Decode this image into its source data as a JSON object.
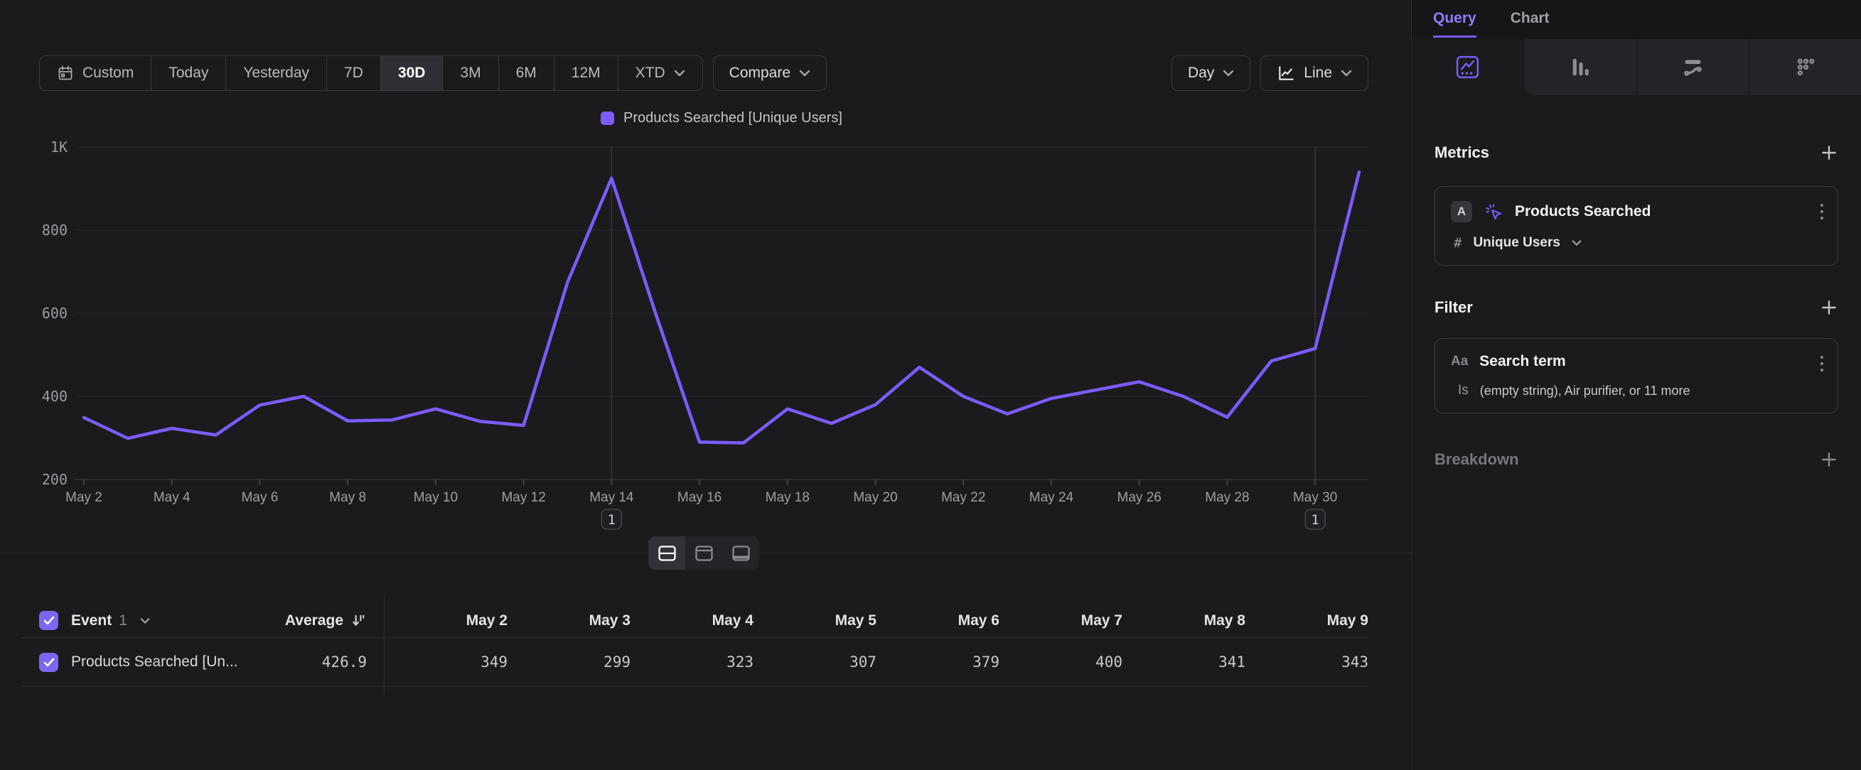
{
  "accent": "#7c5cfc",
  "toolbar": {
    "date_ranges": [
      "Custom",
      "Today",
      "Yesterday",
      "7D",
      "30D",
      "3M",
      "6M",
      "12M",
      "XTD"
    ],
    "active_range": "30D",
    "compare_label": "Compare",
    "granularity_label": "Day",
    "chart_type_label": "Line"
  },
  "chart_data": {
    "type": "line",
    "x": [
      "May 2",
      "May 3",
      "May 4",
      "May 5",
      "May 6",
      "May 7",
      "May 8",
      "May 9",
      "May 10",
      "May 11",
      "May 12",
      "May 13",
      "May 14",
      "May 15",
      "May 16",
      "May 17",
      "May 18",
      "May 19",
      "May 20",
      "May 21",
      "May 22",
      "May 23",
      "May 24",
      "May 25",
      "May 26",
      "May 27",
      "May 28",
      "May 29",
      "May 30",
      "May 31"
    ],
    "x_tick_every": 2,
    "series": [
      {
        "name": "Products Searched [Unique Users]",
        "color": "#7c5cfc",
        "values": [
          349,
          299,
          323,
          307,
          379,
          400,
          341,
          343,
          370,
          340,
          330,
          675,
          925,
          600,
          290,
          288,
          370,
          335,
          380,
          470,
          400,
          358,
          395,
          415,
          435,
          400,
          350,
          485,
          515,
          940
        ]
      }
    ],
    "ylim": [
      200,
      1000
    ],
    "y_ticks": [
      {
        "label": "200",
        "value": 200
      },
      {
        "label": "400",
        "value": 400
      },
      {
        "label": "600",
        "value": 600
      },
      {
        "label": "800",
        "value": 800
      },
      {
        "label": "1K",
        "value": 1000
      }
    ],
    "grid": true,
    "legend_position": "top",
    "annotations": [
      {
        "index": 12,
        "label": "1"
      },
      {
        "index": 28,
        "label": "1"
      }
    ]
  },
  "table": {
    "event_label": "Event",
    "event_count": "1",
    "average_label": "Average",
    "columns": [
      "May 2",
      "May 3",
      "May 4",
      "May 5",
      "May 6",
      "May 7",
      "May 8",
      "May 9"
    ],
    "row": {
      "name": "Products Searched [Un...",
      "average": "426.9",
      "values": [
        "349",
        "299",
        "323",
        "307",
        "379",
        "400",
        "341",
        "343"
      ]
    }
  },
  "sidebar": {
    "tabs": {
      "query": "Query",
      "chart": "Chart"
    },
    "chart_type_tabs": [
      "insights",
      "bar",
      "flows",
      "grid"
    ],
    "metrics": {
      "heading": "Metrics",
      "card": {
        "badge": "A",
        "name": "Products Searched",
        "agg_symbol": "#",
        "aggregation": "Unique Users"
      }
    },
    "filter": {
      "heading": "Filter",
      "card": {
        "type_icon": "Aa",
        "name": "Search term",
        "operator": "Is",
        "value": "(empty string), Air purifier, or 11 more"
      }
    },
    "breakdown": {
      "heading": "Breakdown"
    }
  }
}
